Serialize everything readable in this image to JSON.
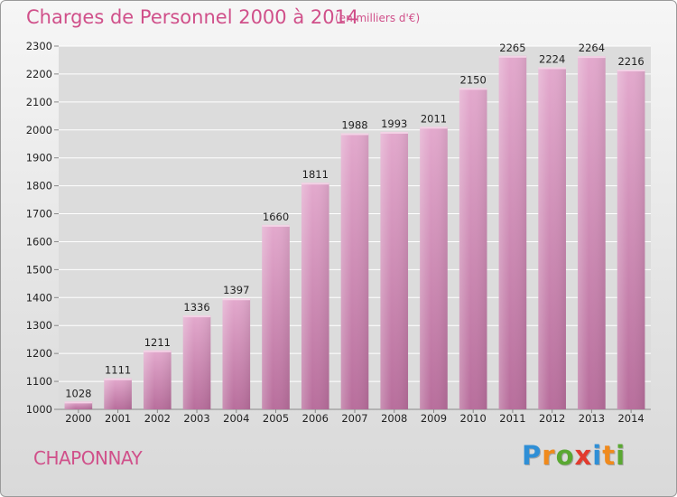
{
  "header": {
    "title": "Charges de Personnel 2000 à 2014",
    "unit_note": "(en milliers d'€)"
  },
  "footer": {
    "place": "CHAPONNAY",
    "logo_text": "Proxiti",
    "logo_letters": [
      {
        "char": "P",
        "color": "#2f8fd6"
      },
      {
        "char": "r",
        "color": "#f08a1c"
      },
      {
        "char": "o",
        "color": "#5aa832"
      },
      {
        "char": "x",
        "color": "#e23b2e"
      },
      {
        "char": "i",
        "color": "#2f8fd6"
      },
      {
        "char": "t",
        "color": "#f08a1c"
      },
      {
        "char": "i",
        "color": "#5aa832"
      }
    ]
  },
  "colors": {
    "accent": "#d0508a",
    "bar_top": "#e3a9cd",
    "bar_bottom": "#b86e9c",
    "grid": "#ffffff",
    "axis_text": "#222222"
  },
  "chart_data": {
    "type": "bar",
    "title": "Charges de Personnel 2000 à 2014",
    "xlabel": "",
    "ylabel": "",
    "categories": [
      "2000",
      "2001",
      "2002",
      "2003",
      "2004",
      "2005",
      "2006",
      "2007",
      "2008",
      "2009",
      "2010",
      "2011",
      "2012",
      "2013",
      "2014"
    ],
    "values": [
      1028,
      1111,
      1211,
      1336,
      1397,
      1660,
      1811,
      1988,
      1993,
      2011,
      2150,
      2265,
      2224,
      2264,
      2216
    ],
    "ylim": [
      1000,
      2300
    ],
    "yticks": [
      1000,
      1100,
      1200,
      1300,
      1400,
      1500,
      1600,
      1700,
      1800,
      1900,
      2000,
      2100,
      2200,
      2300
    ],
    "grid": true,
    "data_labels": true
  }
}
